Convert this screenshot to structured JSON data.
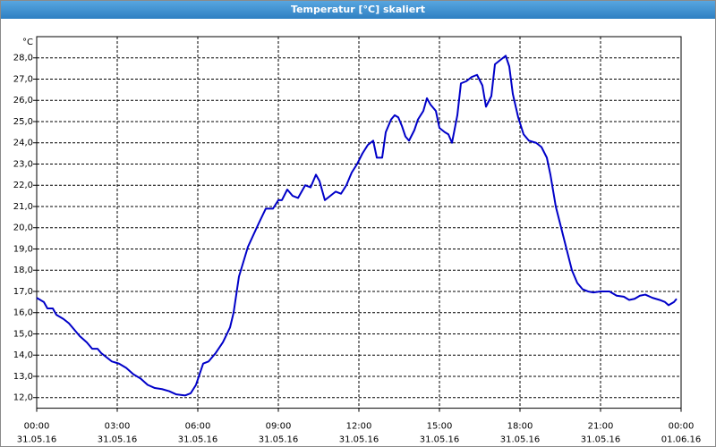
{
  "chart_data": {
    "type": "line",
    "title": "Temperatur [°C] skaliert",
    "ylabel": "°C",
    "xlim": [
      0,
      24
    ],
    "ylim": [
      11.5,
      29.0
    ],
    "grid": true,
    "xticks": [
      {
        "value": 0,
        "label": "00:00",
        "date": "31.05.16"
      },
      {
        "value": 3,
        "label": "03:00",
        "date": "31.05.16"
      },
      {
        "value": 6,
        "label": "06:00",
        "date": "31.05.16"
      },
      {
        "value": 9,
        "label": "09:00",
        "date": "31.05.16"
      },
      {
        "value": 12,
        "label": "12:00",
        "date": "31.05.16"
      },
      {
        "value": 15,
        "label": "15:00",
        "date": "31.05.16"
      },
      {
        "value": 18,
        "label": "18:00",
        "date": "31.05.16"
      },
      {
        "value": 21,
        "label": "21:00",
        "date": "31.05.16"
      },
      {
        "value": 24,
        "label": "00:00",
        "date": "01.06.16"
      }
    ],
    "yticks": [
      {
        "value": 12,
        "label": "12,0"
      },
      {
        "value": 13,
        "label": "13,0"
      },
      {
        "value": 14,
        "label": "14,0"
      },
      {
        "value": 15,
        "label": "15,0"
      },
      {
        "value": 16,
        "label": "16,0"
      },
      {
        "value": 17,
        "label": "17,0"
      },
      {
        "value": 18,
        "label": "18,0"
      },
      {
        "value": 19,
        "label": "19,0"
      },
      {
        "value": 20,
        "label": "20,0"
      },
      {
        "value": 21,
        "label": "21,0"
      },
      {
        "value": 22,
        "label": "22,0"
      },
      {
        "value": 23,
        "label": "23,0"
      },
      {
        "value": 24,
        "label": "24,0"
      },
      {
        "value": 25,
        "label": "25,0"
      },
      {
        "value": 26,
        "label": "26,0"
      },
      {
        "value": 27,
        "label": "27,0"
      },
      {
        "value": 28,
        "label": "28,0"
      }
    ],
    "x": [
      0,
      0.267,
      0.4,
      0.6,
      0.733,
      1,
      1.2,
      1.4,
      1.6,
      1.867,
      2.067,
      2.267,
      2.4,
      2.6,
      2.8,
      3.067,
      3.333,
      3.6,
      3.867,
      4.133,
      4.4,
      4.667,
      4.933,
      5.2,
      5.533,
      5.733,
      5.933,
      6.2,
      6.4,
      6.667,
      6.933,
      7.2,
      7.333,
      7.533,
      7.867,
      8.267,
      8.533,
      8.8,
      9,
      9.133,
      9.333,
      9.533,
      9.733,
      10,
      10.2,
      10.4,
      10.533,
      10.733,
      10.933,
      11.133,
      11.333,
      11.533,
      11.733,
      11.933,
      12.133,
      12.333,
      12.533,
      12.667,
      12.867,
      13,
      13.2,
      13.333,
      13.467,
      13.6,
      13.733,
      13.867,
      14.067,
      14.2,
      14.4,
      14.533,
      14.667,
      14.867,
      15,
      15.2,
      15.333,
      15.467,
      15.667,
      15.8,
      16,
      16.2,
      16.4,
      16.6,
      16.733,
      16.933,
      17.067,
      17.267,
      17.467,
      17.6,
      17.733,
      17.933,
      18.133,
      18.333,
      18.6,
      18.8,
      19,
      19.133,
      19.333,
      19.533,
      19.733,
      19.933,
      20.133,
      20.333,
      20.533,
      20.733,
      21,
      21.333,
      21.6,
      21.867,
      22.067,
      22.267,
      22.467,
      22.667,
      22.933,
      23.2,
      23.4,
      23.533,
      23.733,
      23.833
    ],
    "series": [
      {
        "name": "Temperatur",
        "color": "#0000c8",
        "values": [
          16.7,
          16.5,
          16.2,
          16.2,
          15.9,
          15.7,
          15.5,
          15.2,
          14.9,
          14.6,
          14.3,
          14.3,
          14.1,
          13.9,
          13.7,
          13.6,
          13.4,
          13.1,
          12.9,
          12.6,
          12.45,
          12.4,
          12.3,
          12.15,
          12.1,
          12.2,
          12.6,
          13.6,
          13.7,
          14.1,
          14.6,
          15.3,
          16.0,
          17.7,
          19.1,
          20.2,
          20.9,
          20.9,
          21.3,
          21.3,
          21.8,
          21.5,
          21.4,
          22.0,
          21.9,
          22.5,
          22.2,
          21.3,
          21.5,
          21.7,
          21.6,
          22.0,
          22.6,
          23.0,
          23.5,
          23.9,
          24.1,
          23.3,
          23.3,
          24.5,
          25.1,
          25.3,
          25.2,
          24.8,
          24.3,
          24.1,
          24.6,
          25.1,
          25.5,
          26.1,
          25.8,
          25.5,
          24.7,
          24.5,
          24.4,
          24.0,
          25.3,
          26.8,
          26.9,
          27.1,
          27.2,
          26.7,
          25.7,
          26.2,
          27.7,
          27.9,
          28.1,
          27.6,
          26.3,
          25.2,
          24.4,
          24.1,
          24.0,
          23.8,
          23.3,
          22.5,
          21.0,
          20.0,
          19.0,
          18.0,
          17.4,
          17.1,
          17.0,
          16.95,
          17.0,
          17.0,
          16.8,
          16.75,
          16.6,
          16.65,
          16.8,
          16.85,
          16.7,
          16.6,
          16.5,
          16.35,
          16.5,
          16.65
        ]
      }
    ]
  }
}
